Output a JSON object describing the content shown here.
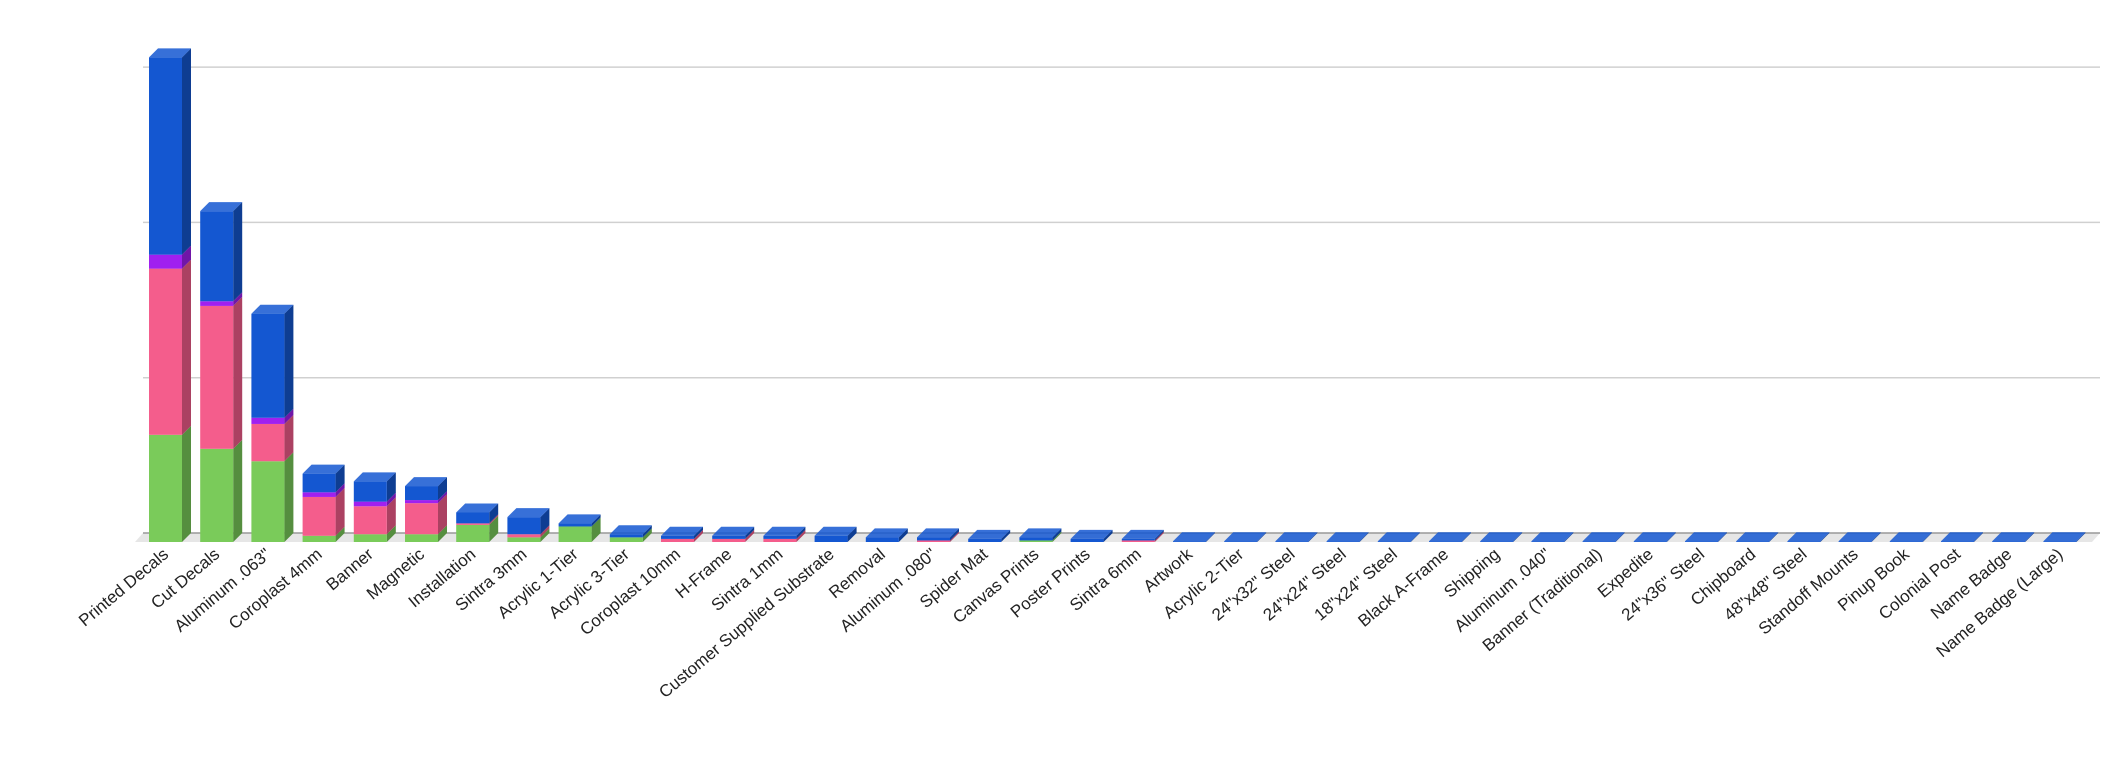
{
  "chart_data": {
    "type": "bar3d_stacked",
    "categories": [
      "Printed Decals",
      "Cut Decals",
      "Aluminum .063\"",
      "Coroplast 4mm",
      "Banner",
      "Magnetic",
      "Installation",
      "Sintra 3mm",
      "Acrylic 1-Tier",
      "Acrylic 3-Tier",
      "Coroplast 10mm",
      "H-Frame",
      "Sintra 1mm",
      "Customer Supplied Substrate",
      "Removal",
      "Aluminum .080\"",
      "Spider Mat",
      "Canvas Prints",
      "Poster Prints",
      "Sintra 6mm",
      "Artwork",
      "Acrylic 2-Tier",
      "24\"x32\" Steel",
      "24\"x24\" Steel",
      "18\"x24\" Steel",
      "Black A-Frame",
      "Shipping",
      "Aluminum .040\"",
      "Banner (Traditional)",
      "Expedite",
      "24\"x36\" Steel",
      "Chipboard",
      "48\"x48\" Steel",
      "Standoff Mounts",
      "Pinup Book",
      "Colonial Post",
      "Name Badge",
      "Name Badge (Large)"
    ],
    "series": [
      {
        "color": "#7acb5a",
        "values": [
          69,
          60,
          52,
          4,
          5,
          5,
          11,
          3,
          10,
          3,
          0,
          0,
          0,
          0,
          0,
          0,
          0,
          1,
          0,
          0,
          0,
          0,
          0,
          0,
          0,
          0,
          0,
          0,
          0,
          0,
          0,
          0,
          0,
          0,
          0,
          0,
          0,
          0
        ]
      },
      {
        "color": "#f45d8c",
        "values": [
          107,
          92,
          24,
          25,
          18,
          20,
          1,
          2,
          0,
          0,
          2,
          2,
          2,
          0,
          0,
          1,
          0,
          0,
          0,
          1,
          0,
          0,
          0,
          0,
          0,
          0,
          0,
          0,
          0,
          0,
          0,
          0,
          0,
          0,
          0,
          0,
          0,
          0
        ]
      },
      {
        "color": "#a020f0",
        "values": [
          9,
          3,
          4,
          3,
          3,
          2,
          0,
          0,
          0,
          0,
          0,
          0,
          0,
          0,
          0,
          0,
          0,
          0,
          0,
          0,
          0,
          0,
          0,
          0,
          0,
          0,
          0,
          0,
          0,
          0,
          0,
          0,
          0,
          0,
          0,
          0,
          0,
          0
        ]
      },
      {
        "color": "#1457d1",
        "values": [
          127,
          58,
          67,
          12,
          13,
          9,
          7,
          11,
          2,
          2,
          2,
          2,
          2,
          4,
          3,
          2,
          2,
          2,
          2,
          1,
          0.5,
          0.5,
          0.5,
          0.5,
          0.5,
          0.5,
          0.5,
          0.5,
          0.5,
          0.5,
          0.5,
          0.5,
          0.5,
          0.5,
          0.5,
          0.5,
          0.5,
          0.5
        ]
      }
    ],
    "ylim": [
      0,
      320
    ],
    "yticks": [
      0,
      100,
      200,
      300
    ],
    "grid": true
  }
}
